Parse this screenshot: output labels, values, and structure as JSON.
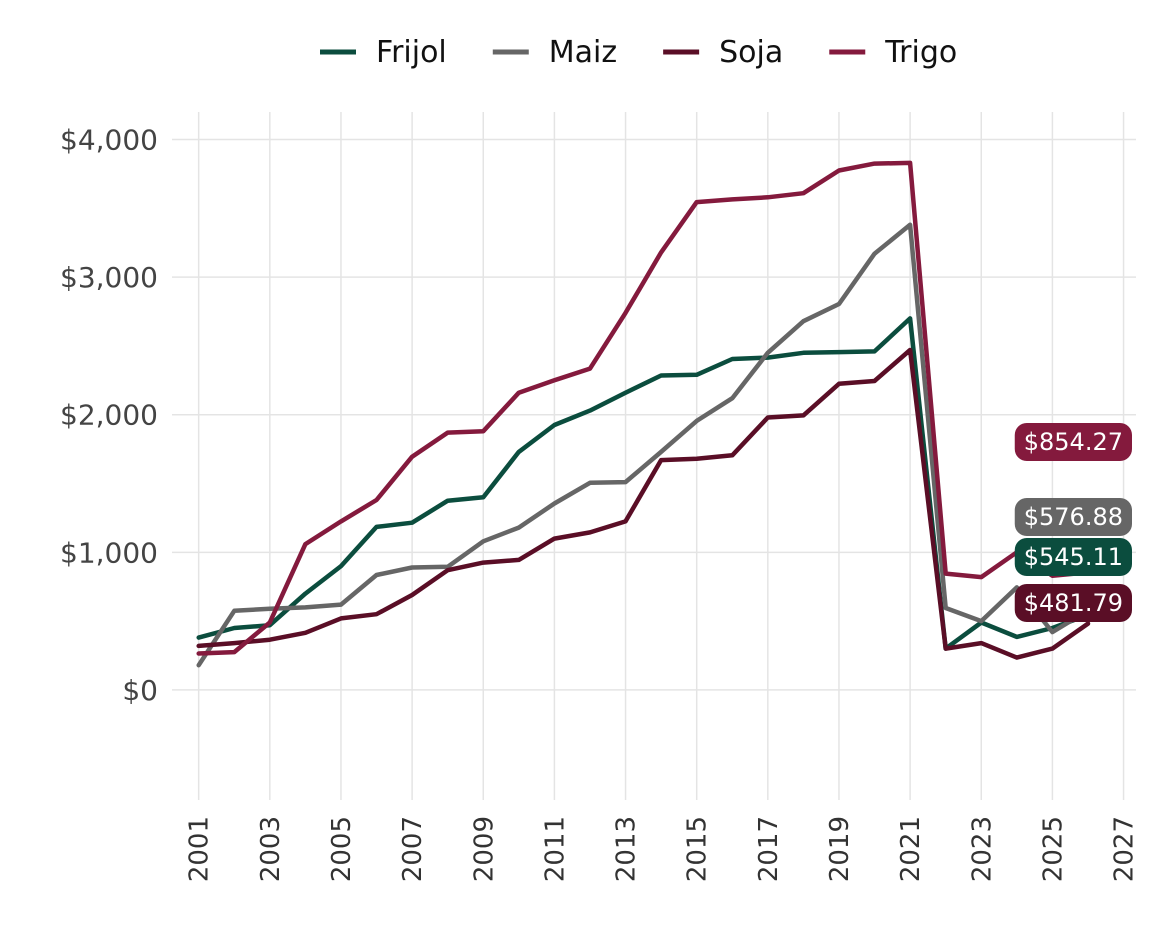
{
  "chart_data": {
    "type": "line",
    "title": "",
    "xlabel": "",
    "ylabel": "",
    "x": [
      2001,
      2002,
      2003,
      2004,
      2005,
      2006,
      2007,
      2008,
      2009,
      2010,
      2011,
      2012,
      2013,
      2014,
      2015,
      2016,
      2017,
      2018,
      2019,
      2020,
      2021,
      2022,
      2023,
      2024,
      2025,
      2026
    ],
    "x_ticks": [
      "2001",
      "2003",
      "2005",
      "2007",
      "2009",
      "2011",
      "2013",
      "2015",
      "2017",
      "2019",
      "2021",
      "2023",
      "2025",
      "2027"
    ],
    "x_tick_values": [
      2001,
      2003,
      2005,
      2007,
      2009,
      2011,
      2013,
      2015,
      2017,
      2019,
      2021,
      2023,
      2025,
      2027
    ],
    "xlim": [
      2000.25,
      2027.35
    ],
    "y_ticks": [
      "$0",
      "$1,000",
      "$2,000",
      "$3,000",
      "$4,000"
    ],
    "y_tick_values": [
      0,
      1000,
      2000,
      3000,
      4000
    ],
    "ylim": [
      -800,
      4200
    ],
    "grid": true,
    "legend_position": "top",
    "series": [
      {
        "name": "Frijol",
        "color": "#0b4d3e",
        "values": [
          380,
          450,
          470,
          700,
          900,
          1185,
          1215,
          1375,
          1400,
          1730,
          1925,
          2030,
          2160,
          2285,
          2290,
          2405,
          2415,
          2450,
          2455,
          2460,
          2700,
          300,
          490,
          385,
          450,
          545.11
        ],
        "end_label": "$545.11"
      },
      {
        "name": "Maiz",
        "color": "#666666",
        "values": [
          180,
          575,
          590,
          600,
          620,
          835,
          890,
          895,
          1080,
          1180,
          1355,
          1505,
          1510,
          1730,
          1955,
          2120,
          2450,
          2680,
          2805,
          3170,
          3380,
          595,
          500,
          745,
          420,
          576.88
        ],
        "end_label": "$576.88"
      },
      {
        "name": "Soja",
        "color": "#5a0e26",
        "values": [
          320,
          340,
          365,
          415,
          520,
          550,
          690,
          870,
          925,
          945,
          1100,
          1145,
          1225,
          1670,
          1680,
          1705,
          1980,
          1995,
          2225,
          2245,
          2470,
          300,
          340,
          235,
          300,
          481.79
        ],
        "end_label": "$481.79"
      },
      {
        "name": "Trigo",
        "color": "#841a3d",
        "values": [
          265,
          275,
          490,
          1060,
          1225,
          1380,
          1695,
          1870,
          1880,
          2160,
          2250,
          2335,
          2740,
          3180,
          3545,
          3565,
          3580,
          3610,
          3775,
          3825,
          3830,
          845,
          820,
          1000,
          830,
          854.27
        ],
        "end_label": "$854.27"
      }
    ]
  }
}
